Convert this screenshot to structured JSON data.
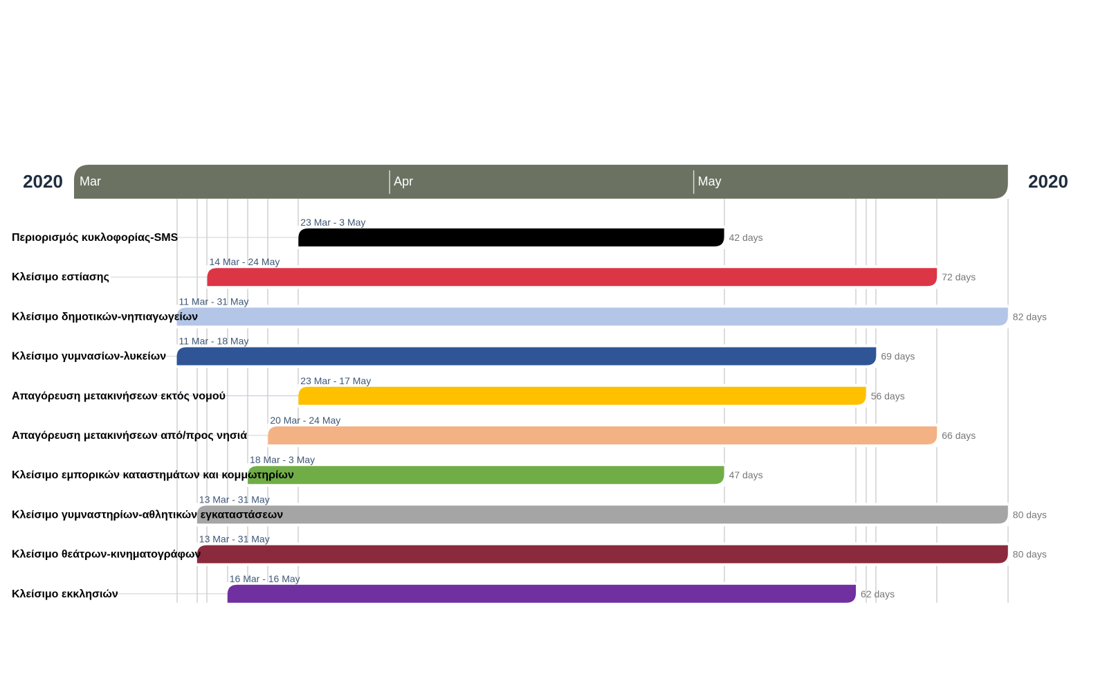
{
  "chart_data": {
    "type": "timeline",
    "year_label_left": "2020",
    "year_label_right": "2020",
    "months": [
      {
        "label": "Mar",
        "date": "2020-03-01"
      },
      {
        "label": "Apr",
        "date": "2020-04-01"
      },
      {
        "label": "May",
        "date": "2020-05-01"
      }
    ],
    "x_range": [
      "2020-03-01",
      "2020-05-31"
    ],
    "header_color": "#6b7262",
    "tasks": [
      {
        "name": "Περιορισμός κυκλοφορίας-SMS",
        "start": "2020-03-23",
        "end": "2020-05-03",
        "range_label": "23 Mar - 3 May",
        "duration_label": "42 days",
        "color": "#000000"
      },
      {
        "name": "Κλείσιμο εστίασης",
        "start": "2020-03-14",
        "end": "2020-05-24",
        "range_label": "14 Mar - 24 May",
        "duration_label": "72 days",
        "color": "#dc3545"
      },
      {
        "name": "Κλείσιμο δημοτικών-νηπιαγωγείων",
        "start": "2020-03-11",
        "end": "2020-05-31",
        "range_label": "11 Mar - 31 May",
        "duration_label": "82 days",
        "color": "#b4c6e7"
      },
      {
        "name": "Κλείσιμο γυμνασίων-λυκείων",
        "start": "2020-03-11",
        "end": "2020-05-18",
        "range_label": "11 Mar - 18 May",
        "duration_label": "69 days",
        "color": "#2f5597"
      },
      {
        "name": "Απαγόρευση μετακινήσεων εκτός νομού",
        "start": "2020-03-23",
        "end": "2020-05-17",
        "range_label": "23 Mar - 17 May",
        "duration_label": "56 days",
        "color": "#ffc000"
      },
      {
        "name": "Απαγόρευση μετακινήσεων από/προς νησιά",
        "start": "2020-03-20",
        "end": "2020-05-24",
        "range_label": "20 Mar - 24 May",
        "duration_label": "66 days",
        "color": "#f4b183"
      },
      {
        "name": "Κλείσιμο εμπορικών καταστημάτων και κομμωτηρίων",
        "start": "2020-03-18",
        "end": "2020-05-03",
        "range_label": "18 Mar - 3 May",
        "duration_label": "47 days",
        "color": "#70ad47"
      },
      {
        "name": "Κλείσιμο γυμναστηρίων-αθλητικών εγκαταστάσεων",
        "start": "2020-03-13",
        "end": "2020-05-31",
        "range_label": "13 Mar - 31 May",
        "duration_label": "80 days",
        "color": "#a5a5a5"
      },
      {
        "name": "Κλείσιμο θεάτρων-κινηματογράφων",
        "start": "2020-03-13",
        "end": "2020-05-31",
        "range_label": "13 Mar - 31 May",
        "duration_label": "80 days",
        "color": "#8b2a3c"
      },
      {
        "name": "Κλείσιμο εκκλησιών",
        "start": "2020-03-16",
        "end": "2020-05-16",
        "range_label": "16 Mar - 16 May",
        "duration_label": "62 days",
        "color": "#7030a0"
      }
    ]
  }
}
